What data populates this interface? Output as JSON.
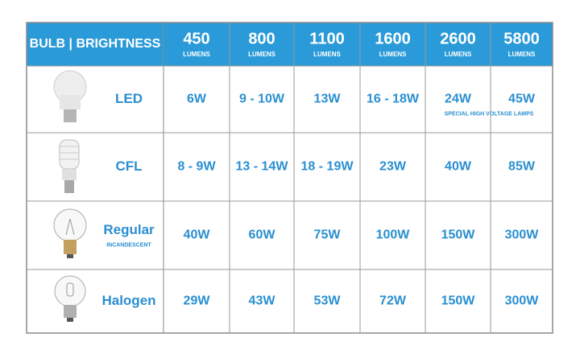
{
  "header": {
    "label": "BULB | BRIGHTNESS",
    "columns": [
      {
        "value": "450",
        "unit": "LUMENS"
      },
      {
        "value": "800",
        "unit": "LUMENS"
      },
      {
        "value": "1100",
        "unit": "LUMENS"
      },
      {
        "value": "1600",
        "unit": "LUMENS"
      },
      {
        "value": "2600",
        "unit": "LUMENS"
      },
      {
        "value": "5800",
        "unit": "LUMENS"
      }
    ]
  },
  "rows": [
    {
      "name": "LED",
      "cells": [
        "6W",
        "9 - 10W",
        "13W",
        "16 - 18W",
        "24W",
        "45W"
      ],
      "note": "SPECIAL HIGH VOLTAGE LAMPS"
    },
    {
      "name": "CFL",
      "cells": [
        "8 - 9W",
        "13 - 14W",
        "18 - 19W",
        "23W",
        "40W",
        "85W"
      ]
    },
    {
      "name": "Regular",
      "subtitle": "INCANDESCENT",
      "cells": [
        "40W",
        "60W",
        "75W",
        "100W",
        "150W",
        "300W"
      ]
    },
    {
      "name": "Halogen",
      "cells": [
        "29W",
        "43W",
        "53W",
        "72W",
        "150W",
        "300W"
      ]
    }
  ]
}
